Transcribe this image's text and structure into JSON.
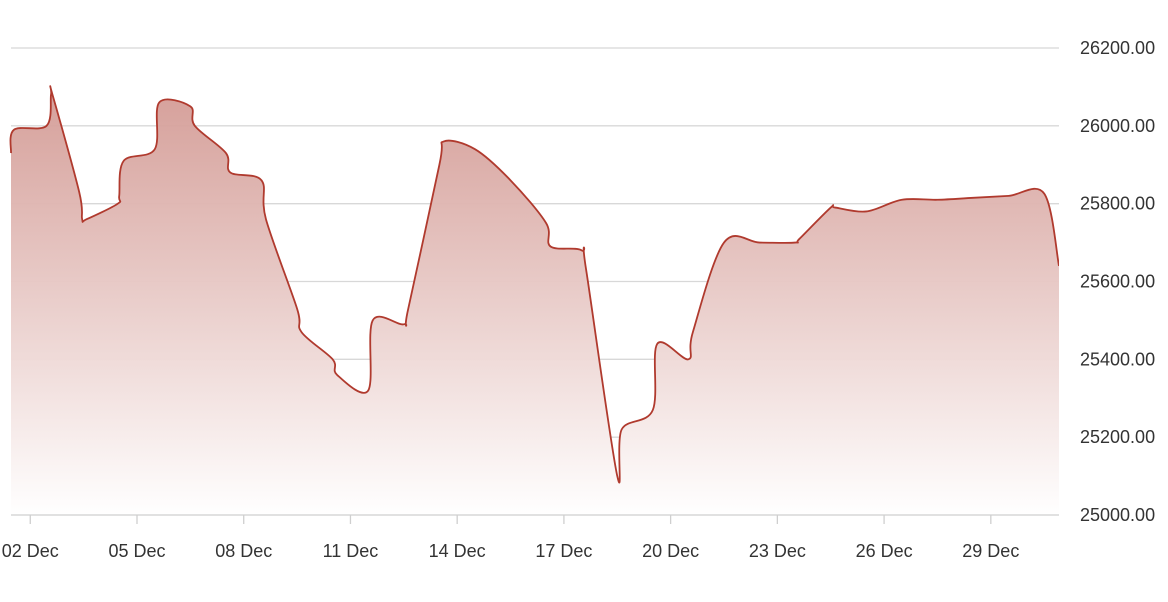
{
  "chart_data": {
    "type": "area",
    "title": "",
    "xlabel": "",
    "ylabel": "",
    "x_tick_labels": [
      "02 Dec",
      "05 Dec",
      "08 Dec",
      "11 Dec",
      "14 Dec",
      "17 Dec",
      "20 Dec",
      "23 Dec",
      "26 Dec",
      "29 Dec"
    ],
    "y_tick_labels": [
      "25000.00",
      "25200.00",
      "25400.00",
      "25600.00",
      "25800.00",
      "26000.00",
      "26200.00"
    ],
    "ylim": [
      25000,
      26200
    ],
    "xlim": [
      "2022-12-01T11:00",
      "2022-12-30T22:00"
    ],
    "y_axis_position": "right",
    "grid": true,
    "legend": "none",
    "colors": {
      "line": "#b03a2e",
      "fill_top": "#d39a94",
      "fill_bottom": "#ffffff"
    },
    "series": [
      {
        "x": [
          "2022-12-01T11:00",
          "2022-12-01T13:00",
          "2022-12-02T11:00",
          "2022-12-02T14:00",
          "2022-12-02T15:00",
          "2022-12-03T09:00",
          "2022-12-03T11:00",
          "2022-12-03T14:00",
          "2022-12-04T11:00",
          "2022-12-04T12:00",
          "2022-12-04T15:00",
          "2022-12-05T12:00",
          "2022-12-05T15:00",
          "2022-12-06T12:00",
          "2022-12-06T15:00",
          "2022-12-07T12:00",
          "2022-12-07T15:00",
          "2022-12-08T12:00",
          "2022-12-08T15:00",
          "2022-12-09T12:00",
          "2022-12-09T15:00",
          "2022-12-10T12:00",
          "2022-12-10T15:00",
          "2022-12-11T12:00",
          "2022-12-11T15:00",
          "2022-12-12T12:00",
          "2022-12-12T15:00",
          "2022-12-13T12:00",
          "2022-12-13T15:00",
          "2022-12-14T12:00",
          "2022-12-15T12:00",
          "2022-12-16T12:00",
          "2022-12-16T15:00",
          "2022-12-17T12:00",
          "2022-12-17T15:00",
          "2022-12-18T12:00",
          "2022-12-18T15:00",
          "2022-12-19T12:00",
          "2022-12-19T15:00",
          "2022-12-20T12:00",
          "2022-12-20T15:00",
          "2022-12-21T12:00",
          "2022-12-22T12:00",
          "2022-12-23T12:00",
          "2022-12-23T15:00",
          "2022-12-24T12:00",
          "2022-12-24T15:00",
          "2022-12-25T12:00",
          "2022-12-26T12:00",
          "2022-12-27T12:00",
          "2022-12-28T12:00",
          "2022-12-29T12:00",
          "2022-12-30T12:00",
          "2022-12-30T22:00"
        ],
        "values": [
          25930,
          25990,
          26000,
          26080,
          26080,
          25830,
          25760,
          25760,
          25800,
          25820,
          25910,
          25940,
          26060,
          26050,
          26000,
          25930,
          25880,
          25860,
          25760,
          25530,
          25470,
          25400,
          25360,
          25320,
          25500,
          25490,
          25530,
          25900,
          25960,
          25940,
          25860,
          25750,
          25690,
          25680,
          25630,
          25100,
          25220,
          25270,
          25440,
          25400,
          25470,
          25700,
          25700,
          25700,
          25710,
          25790,
          25790,
          25780,
          25810,
          25810,
          25815,
          25820,
          25826,
          25640
        ]
      }
    ]
  }
}
